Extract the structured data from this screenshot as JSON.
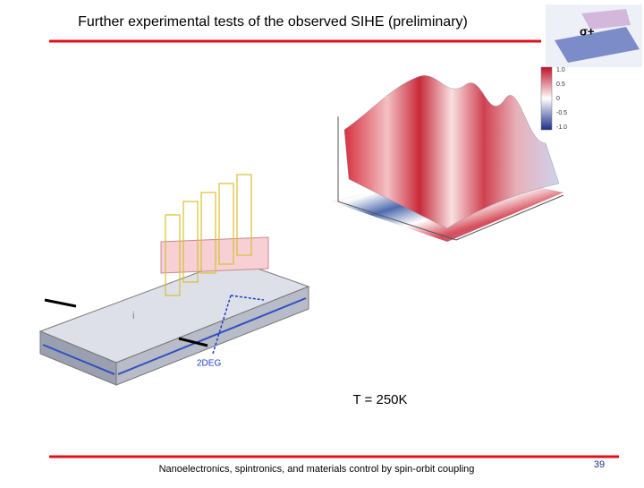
{
  "header": {
    "title": "Further experimental tests of the observed SIHE  (preliminary)"
  },
  "figure": {
    "temperature": "T = 250K",
    "device_label": "2DEG",
    "current_label": "i",
    "light_label": "σ+",
    "colorbar_ticks": [
      "1.0",
      "0.5",
      "0",
      "-0.5",
      "-1.0"
    ]
  },
  "footer": {
    "text": "Nanoelectronics, spintronics, and materials control by spin-orbit coupling",
    "page": "39"
  }
}
